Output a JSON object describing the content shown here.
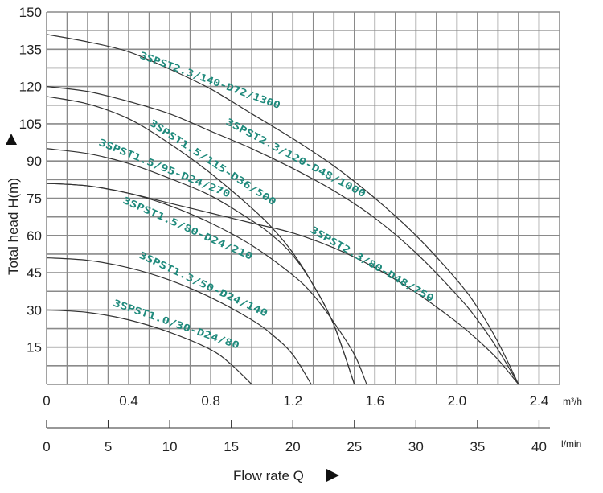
{
  "chart_data": {
    "type": "line",
    "title": "",
    "ylabel": "Total head H(m)",
    "xlabel": "Flow rate Q",
    "x_unit_primary": "m³/h",
    "x_unit_secondary": "l/min",
    "xlim": [
      0,
      2.5
    ],
    "ylim": [
      0,
      150
    ],
    "grid": true,
    "x_ticks": [
      "0",
      "0.4",
      "0.8",
      "1.2",
      "1.6",
      "2.0",
      "2.4"
    ],
    "x_ticks_secondary": [
      "0",
      "5",
      "10",
      "15",
      "20",
      "25",
      "30",
      "35",
      "40"
    ],
    "y_ticks": [
      "15",
      "30",
      "45",
      "60",
      "75",
      "90",
      "105",
      "120",
      "135",
      "150"
    ],
    "line_color": "#333333",
    "label_color": "#1f8a7c",
    "series": [
      {
        "name": "3SPST2.3/140-D72/1300",
        "x": [
          0,
          0.2,
          0.4,
          0.6,
          0.8,
          1.0,
          1.2,
          1.4,
          1.6,
          1.8,
          2.0,
          2.1,
          2.2,
          2.3
        ],
        "y": [
          141,
          138,
          134,
          127,
          119,
          109,
          99,
          88,
          75,
          60,
          42,
          31,
          17,
          0
        ]
      },
      {
        "name": "3SPST2.3/120-D48/1000",
        "x": [
          0,
          0.2,
          0.4,
          0.6,
          0.8,
          1.0,
          1.2,
          1.4,
          1.6,
          1.8,
          2.0,
          2.1,
          2.2,
          2.3
        ],
        "y": [
          120,
          118,
          114,
          109,
          102,
          95,
          87,
          78,
          67,
          53,
          36,
          26,
          14,
          0
        ]
      },
      {
        "name": "3SPST1.5/115-D36/500",
        "x": [
          0,
          0.2,
          0.4,
          0.6,
          0.8,
          1.0,
          1.1,
          1.2,
          1.3,
          1.4,
          1.5
        ],
        "y": [
          116,
          113,
          107,
          97,
          85,
          71,
          63,
          53,
          40,
          24,
          0
        ]
      },
      {
        "name": "3SPST1.5/95-D24/270",
        "x": [
          0,
          0.2,
          0.4,
          0.6,
          0.8,
          1.0,
          1.1,
          1.2,
          1.3,
          1.4,
          1.5
        ],
        "y": [
          95,
          93,
          89,
          83,
          76,
          66,
          60,
          52,
          40,
          24,
          0
        ]
      },
      {
        "name": "3SPST1.5/80-D24/210",
        "x": [
          0,
          0.2,
          0.4,
          0.6,
          0.8,
          1.0,
          1.2,
          1.3,
          1.4,
          1.5,
          1.56
        ],
        "y": [
          81,
          80,
          77,
          72,
          65,
          56,
          44,
          36,
          25,
          12,
          0
        ]
      },
      {
        "name": "3SPST2.3/80-D48/750",
        "x": [
          0,
          0.2,
          0.4,
          0.6,
          0.8,
          1.0,
          1.2,
          1.4,
          1.6,
          1.8,
          2.0,
          2.1,
          2.2,
          2.3
        ],
        "y": [
          81,
          80,
          77,
          73,
          69,
          65,
          61,
          55,
          47,
          37,
          25,
          18,
          10,
          0
        ]
      },
      {
        "name": "3SPST1.3/50-D24/140",
        "x": [
          0,
          0.2,
          0.4,
          0.6,
          0.8,
          1.0,
          1.1,
          1.2,
          1.29
        ],
        "y": [
          51,
          50,
          47,
          42,
          35,
          26,
          20,
          12,
          0
        ]
      },
      {
        "name": "3SPST1.0/30-D24/80",
        "x": [
          0,
          0.2,
          0.4,
          0.6,
          0.8,
          0.9,
          1.0
        ],
        "y": [
          30,
          29,
          26,
          21,
          14,
          8,
          0
        ]
      }
    ]
  }
}
